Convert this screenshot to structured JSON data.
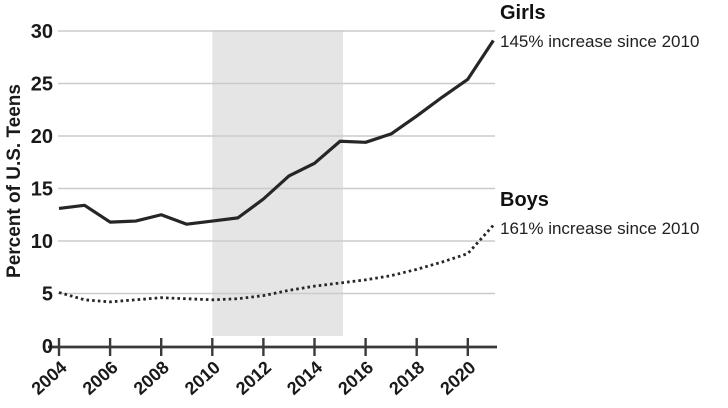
{
  "chart_data": {
    "type": "line",
    "title": "",
    "xlabel": "",
    "ylabel": "Percent of U.S. Teens",
    "x": [
      2004,
      2005,
      2006,
      2007,
      2008,
      2009,
      2010,
      2011,
      2012,
      2013,
      2014,
      2015,
      2016,
      2017,
      2018,
      2019,
      2020,
      2021
    ],
    "series": [
      {
        "name": "Girls",
        "annotation": "145% increase since 2010",
        "line_style": "solid",
        "values": [
          13.1,
          13.4,
          11.8,
          11.9,
          12.5,
          11.6,
          11.9,
          12.2,
          14.0,
          16.2,
          17.4,
          19.5,
          19.4,
          20.2,
          21.9,
          23.7,
          25.4,
          29.1
        ]
      },
      {
        "name": "Boys",
        "annotation": "161% increase since 2010",
        "line_style": "dotted",
        "values": [
          5.1,
          4.4,
          4.2,
          4.4,
          4.6,
          4.5,
          4.4,
          4.5,
          4.8,
          5.3,
          5.7,
          6.0,
          6.3,
          6.7,
          7.3,
          8.0,
          8.8,
          11.5
        ]
      }
    ],
    "x_tick_labels": [
      "2004",
      "2006",
      "2008",
      "2010",
      "2012",
      "2014",
      "2016",
      "2018",
      "2020"
    ],
    "x_tick_values": [
      2004,
      2006,
      2008,
      2010,
      2012,
      2014,
      2016,
      2018,
      2020
    ],
    "y_tick_labels": [
      "0",
      "5",
      "10",
      "15",
      "20",
      "25",
      "30"
    ],
    "y_tick_values": [
      0,
      5,
      10,
      15,
      20,
      25,
      30
    ],
    "xlim": [
      2004,
      2021
    ],
    "ylim": [
      0,
      30
    ],
    "grid": "horizontal",
    "legend_position": "right",
    "shaded_region": {
      "from": 2010,
      "to": 2015
    },
    "colors": {
      "line": "#262626",
      "grid": "#cbcbcb",
      "shade": "#e5e5e5",
      "axis": "#3a3a3a",
      "text": "#1a1a1a"
    }
  }
}
